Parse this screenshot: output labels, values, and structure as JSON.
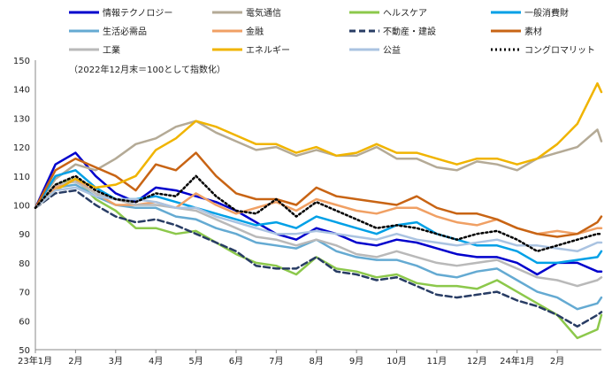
{
  "chart_data": {
    "type": "line",
    "note": "（2022年12月末＝100として指数化）",
    "ylim": [
      50,
      150
    ],
    "yticks": [
      50,
      60,
      70,
      80,
      90,
      100,
      110,
      120,
      130,
      140,
      150
    ],
    "xlim": [
      0,
      14.1
    ],
    "xticks": [
      {
        "pos": 0,
        "label": "23年1月"
      },
      {
        "pos": 1,
        "label": "2月"
      },
      {
        "pos": 2,
        "label": "3月"
      },
      {
        "pos": 3,
        "label": "4月"
      },
      {
        "pos": 4,
        "label": "5月"
      },
      {
        "pos": 5,
        "label": "6月"
      },
      {
        "pos": 6,
        "label": "7月"
      },
      {
        "pos": 7,
        "label": "8月"
      },
      {
        "pos": 8,
        "label": "9月"
      },
      {
        "pos": 9,
        "label": "10月"
      },
      {
        "pos": 10,
        "label": "11月"
      },
      {
        "pos": 11,
        "label": "12月"
      },
      {
        "pos": 12,
        "label": "24年1月"
      },
      {
        "pos": 13,
        "label": "2月"
      }
    ],
    "x": [
      0,
      0.5,
      1,
      1.5,
      2,
      2.5,
      3,
      3.5,
      4,
      4.5,
      5,
      5.5,
      6,
      6.5,
      7,
      7.5,
      8,
      8.5,
      9,
      9.5,
      10,
      10.5,
      11,
      11.5,
      12,
      12.5,
      13,
      13.5,
      14,
      14.1
    ],
    "series": [
      {
        "name": "情報テクノロジー",
        "color": "#0000cc",
        "dash": "solid",
        "values": [
          99,
          114,
          118,
          110,
          104,
          101,
          106,
          105,
          103,
          101,
          98,
          94,
          90,
          88,
          92,
          90,
          87,
          86,
          88,
          87,
          85,
          83,
          82,
          82,
          80,
          76,
          80,
          80,
          77,
          77
        ]
      },
      {
        "name": "電気通信",
        "color": "#b4aa96",
        "dash": "solid",
        "values": [
          99,
          109,
          114,
          112,
          116,
          121,
          123,
          127,
          129,
          125,
          122,
          119,
          120,
          117,
          119,
          117,
          117,
          120,
          116,
          116,
          113,
          112,
          115,
          114,
          112,
          116,
          118,
          120,
          126,
          122
        ]
      },
      {
        "name": "ヘルスケア",
        "color": "#8cc84b",
        "dash": "solid",
        "values": [
          99,
          107,
          109,
          102,
          98,
          92,
          92,
          90,
          91,
          87,
          83,
          80,
          79,
          76,
          82,
          78,
          77,
          75,
          76,
          73,
          72,
          72,
          71,
          74,
          70,
          66,
          62,
          54,
          57,
          62
        ]
      },
      {
        "name": "一般消費財",
        "color": "#00a0e6",
        "dash": "solid",
        "values": [
          99,
          110,
          112,
          106,
          102,
          102,
          103,
          101,
          99,
          97,
          95,
          93,
          94,
          92,
          96,
          94,
          92,
          90,
          93,
          94,
          90,
          88,
          86,
          86,
          84,
          80,
          80,
          81,
          82,
          84
        ]
      },
      {
        "name": "生活必需品",
        "color": "#64aad2",
        "dash": "solid",
        "values": [
          99,
          106,
          107,
          103,
          100,
          99,
          99,
          96,
          95,
          92,
          90,
          87,
          86,
          85,
          88,
          84,
          82,
          81,
          81,
          79,
          76,
          75,
          77,
          78,
          74,
          70,
          68,
          64,
          66,
          68
        ]
      },
      {
        "name": "金融",
        "color": "#f0a064",
        "dash": "solid",
        "values": [
          99,
          106,
          109,
          104,
          100,
          100,
          101,
          99,
          104,
          100,
          97,
          99,
          101,
          98,
          102,
          100,
          98,
          97,
          99,
          99,
          96,
          94,
          93,
          95,
          92,
          90,
          91,
          90,
          92,
          92
        ]
      },
      {
        "name": "不動産・建設",
        "color": "#283c64",
        "dash": "dashed",
        "values": [
          99,
          104,
          105,
          100,
          96,
          94,
          95,
          93,
          90,
          87,
          84,
          79,
          78,
          78,
          82,
          77,
          76,
          74,
          75,
          72,
          69,
          68,
          69,
          70,
          67,
          65,
          62,
          58,
          62,
          63
        ]
      },
      {
        "name": "素材",
        "color": "#c86414",
        "dash": "solid",
        "values": [
          99,
          112,
          116,
          113,
          110,
          105,
          114,
          112,
          118,
          110,
          104,
          102,
          102,
          100,
          106,
          103,
          102,
          101,
          100,
          103,
          99,
          97,
          97,
          95,
          92,
          90,
          89,
          90,
          94,
          96
        ]
      },
      {
        "name": "工業",
        "color": "#b9b9b9",
        "dash": "solid",
        "values": [
          99,
          107,
          108,
          104,
          102,
          100,
          100,
          99,
          98,
          95,
          92,
          89,
          88,
          86,
          88,
          86,
          83,
          82,
          84,
          82,
          80,
          79,
          80,
          81,
          78,
          75,
          74,
          72,
          74,
          75
        ]
      },
      {
        "name": "エネルギー",
        "color": "#f0b400",
        "dash": "solid",
        "values": [
          99,
          105,
          109,
          106,
          107,
          110,
          119,
          123,
          129,
          127,
          124,
          121,
          121,
          118,
          120,
          117,
          118,
          121,
          118,
          118,
          116,
          114,
          116,
          116,
          114,
          116,
          121,
          128,
          142,
          139
        ]
      },
      {
        "name": "公益",
        "color": "#aac3e1",
        "dash": "solid",
        "values": [
          99,
          105,
          106,
          103,
          102,
          102,
          101,
          99,
          99,
          96,
          94,
          92,
          90,
          90,
          91,
          90,
          89,
          88,
          90,
          88,
          87,
          86,
          87,
          88,
          86,
          86,
          85,
          84,
          87,
          87
        ]
      },
      {
        "name": "コングロマリット",
        "color": "#000000",
        "dash": "dotted",
        "values": [
          99,
          107,
          110,
          105,
          102,
          101,
          104,
          103,
          110,
          103,
          98,
          97,
          102,
          96,
          101,
          98,
          95,
          92,
          93,
          92,
          90,
          88,
          90,
          91,
          88,
          84,
          86,
          88,
          90,
          90
        ]
      }
    ]
  }
}
